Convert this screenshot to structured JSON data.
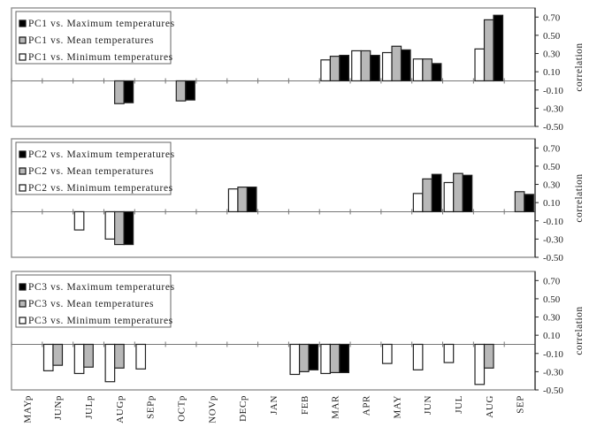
{
  "chart_data": {
    "type": "bar",
    "categories": [
      "MAYp",
      "JUNp",
      "JULp",
      "AUGp",
      "SEPp",
      "OCTp",
      "NOVp",
      "DECp",
      "JAN",
      "FEB",
      "MAR",
      "APR",
      "MAY",
      "JUN",
      "JUL",
      "AUG",
      "SEP"
    ],
    "ylabel": "correlation",
    "ylim": [
      -0.5,
      0.8
    ],
    "yticks": [
      "0.70",
      "0.50",
      "0.30",
      "0.10",
      "-0.10",
      "-0.30",
      "-0.50"
    ],
    "ytick_values": [
      0.7,
      0.5,
      0.3,
      0.1,
      -0.1,
      -0.3,
      -0.5
    ],
    "legend_position": "top-left",
    "colors": {
      "Minimum": "#ffffff",
      "Mean": "#b8b8b8",
      "Maximum": "#000000"
    },
    "panels": [
      {
        "name": "PC1",
        "legend": [
          "PC1 vs. Maximum temperatures",
          "PC1 vs. Mean temperatures",
          "PC1 vs. Minimum temperatures"
        ],
        "series": [
          {
            "name": "Minimum",
            "values": [
              null,
              null,
              null,
              null,
              null,
              null,
              null,
              null,
              null,
              null,
              0.23,
              0.33,
              0.31,
              0.24,
              null,
              0.35,
              null
            ]
          },
          {
            "name": "Mean",
            "values": [
              null,
              null,
              null,
              -0.25,
              null,
              -0.22,
              null,
              null,
              null,
              null,
              0.27,
              0.33,
              0.38,
              0.24,
              null,
              0.67,
              null
            ]
          },
          {
            "name": "Maximum",
            "values": [
              null,
              null,
              null,
              -0.24,
              null,
              -0.21,
              null,
              null,
              null,
              null,
              0.28,
              0.28,
              0.34,
              0.19,
              null,
              0.72,
              null
            ]
          }
        ]
      },
      {
        "name": "PC2",
        "legend": [
          "PC2 vs. Maximum temperatures",
          "PC2 vs. Mean temperatures",
          "PC2 vs. Minimum temperatures"
        ],
        "series": [
          {
            "name": "Minimum",
            "values": [
              null,
              null,
              -0.2,
              -0.3,
              null,
              null,
              null,
              0.25,
              null,
              null,
              null,
              null,
              null,
              0.2,
              0.32,
              null,
              null
            ]
          },
          {
            "name": "Mean",
            "values": [
              null,
              null,
              null,
              -0.36,
              null,
              null,
              null,
              0.27,
              null,
              null,
              null,
              null,
              null,
              0.36,
              0.42,
              null,
              0.22
            ]
          },
          {
            "name": "Maximum",
            "values": [
              null,
              null,
              null,
              -0.36,
              null,
              null,
              null,
              0.27,
              null,
              null,
              null,
              null,
              null,
              0.41,
              0.4,
              null,
              0.19
            ]
          }
        ]
      },
      {
        "name": "PC3",
        "legend": [
          "PC3 vs. Maximum temperatures",
          "PC3 vs. Mean temperatures",
          "PC3 vs. Minimum temperatures"
        ],
        "series": [
          {
            "name": "Minimum",
            "values": [
              null,
              -0.29,
              -0.32,
              -0.41,
              -0.27,
              null,
              null,
              null,
              null,
              -0.33,
              -0.32,
              null,
              -0.21,
              -0.28,
              -0.2,
              -0.44,
              null
            ]
          },
          {
            "name": "Mean",
            "values": [
              null,
              -0.23,
              -0.25,
              -0.26,
              null,
              null,
              null,
              null,
              null,
              -0.3,
              -0.31,
              null,
              null,
              null,
              null,
              -0.26,
              null
            ]
          },
          {
            "name": "Maximum",
            "values": [
              null,
              null,
              null,
              null,
              null,
              null,
              null,
              null,
              null,
              -0.28,
              -0.31,
              null,
              null,
              null,
              null,
              null,
              null
            ]
          }
        ]
      }
    ]
  }
}
